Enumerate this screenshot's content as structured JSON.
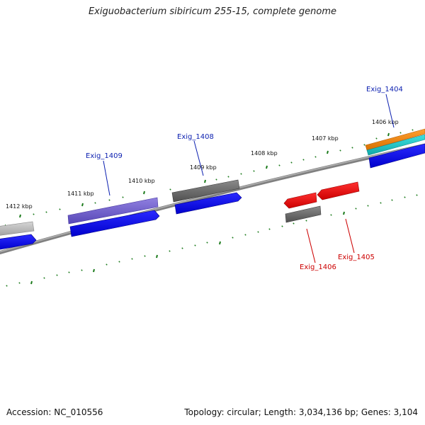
{
  "title": "Exiguobacterium sibiricum 255-15, complete genome",
  "footer": {
    "accession": "Accession: NC_010556",
    "summary": "Topology: circular; Length: 3,034,136 bp; Genes: 3,104"
  },
  "colors": {
    "forward_label": "#0b1fb0",
    "reverse_label": "#cc0000",
    "tick": "#1a7a1a",
    "backbone": "#808080",
    "cds_blue": "#1010e6",
    "red_gene": "#ee0a0a",
    "gray_gene": "#6e6e6e",
    "lightgray_gene": "#b8b8b8",
    "purple_gene": "#7060cc",
    "orange_gene": "#f08c10",
    "cyan_gene": "#20c8c8"
  },
  "tick_labels": [
    "1406 kbp",
    "1407 kbp",
    "1408 kbp",
    "1409 kbp",
    "1410 kbp",
    "1411 kbp",
    "1412 kbp"
  ],
  "gene_labels": {
    "forward": [
      "Exig_1404",
      "Exig_1408",
      "Exig_1409"
    ],
    "reverse": [
      "Exig_1405",
      "Exig_1406"
    ]
  }
}
